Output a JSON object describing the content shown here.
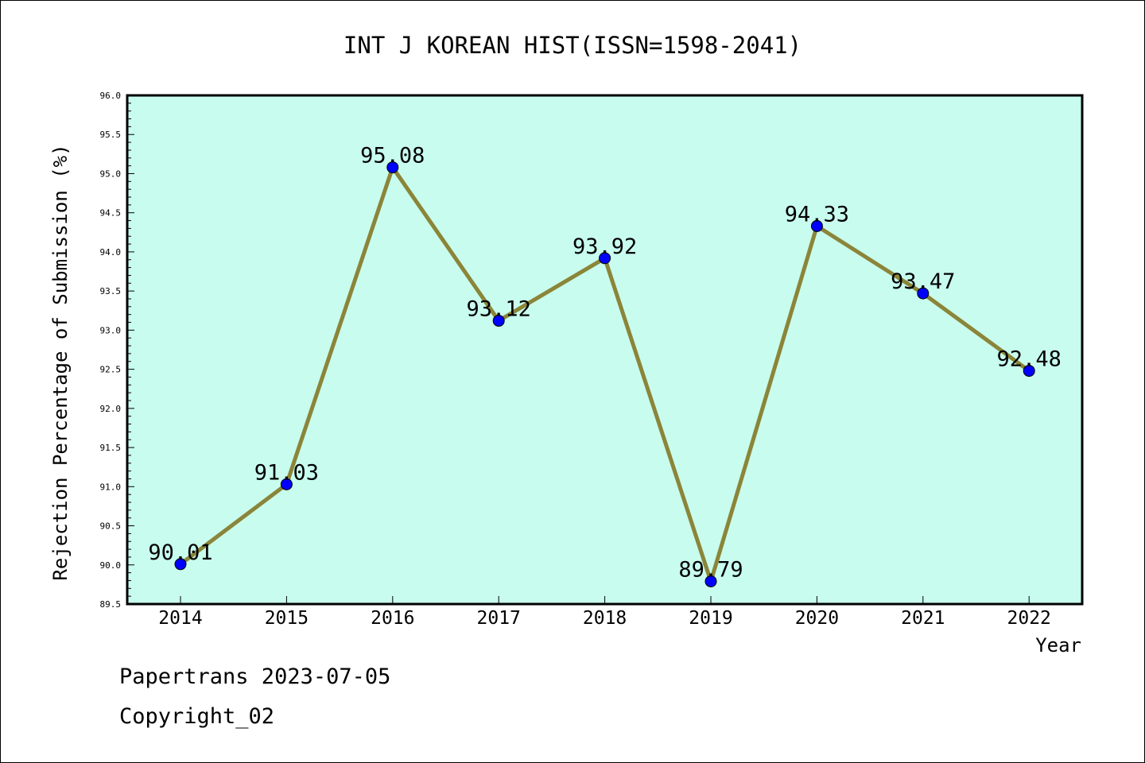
{
  "chart_data": {
    "type": "line",
    "title": "INT J KOREAN HIST(ISSN=1598-2041)",
    "xlabel": "Year",
    "ylabel": "Rejection Percentage of Submission (%)",
    "categories": [
      "2014",
      "2015",
      "2016",
      "2017",
      "2018",
      "2019",
      "2020",
      "2021",
      "2022"
    ],
    "series": [
      {
        "values": [
          90.01,
          91.03,
          95.08,
          93.12,
          93.92,
          89.79,
          94.33,
          93.47,
          92.48
        ]
      }
    ],
    "data_labels": [
      "90.01",
      "91.03",
      "95.08",
      "93.12",
      "93.92",
      "89.79",
      "94.33",
      "93.47",
      "92.48"
    ],
    "ylim": [
      89.5,
      96.0
    ],
    "yticks": [
      "89.5",
      "90.0",
      "90.5",
      "91.0",
      "91.5",
      "92.0",
      "92.5",
      "93.0",
      "93.5",
      "94.0",
      "94.5",
      "95.0",
      "95.5",
      "96.0"
    ],
    "grid": false,
    "colors": {
      "plot_background": "#c8fcee",
      "line": "#8b8539",
      "marker": "#0000ff"
    }
  },
  "footer": {
    "source": "Papertrans 2023-07-05",
    "copyright": "Copyright_02"
  }
}
